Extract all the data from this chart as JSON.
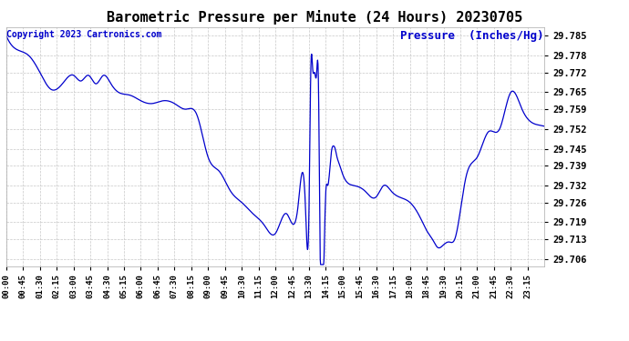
{
  "title": "Barometric Pressure per Minute (24 Hours) 20230705",
  "ylabel": "Pressure  (Inches/Hg)",
  "copyright": "Copyright 2023 Cartronics.com",
  "line_color": "#0000cc",
  "ylabel_color": "#0000cc",
  "copyright_color": "#0000cc",
  "background_color": "#ffffff",
  "grid_color": "#c8c8c8",
  "title_fontsize": 11,
  "ylabel_fontsize": 9,
  "copyright_fontsize": 7,
  "yticks": [
    29.706,
    29.713,
    29.719,
    29.726,
    29.732,
    29.739,
    29.745,
    29.752,
    29.759,
    29.765,
    29.772,
    29.778,
    29.785
  ],
  "ylim": [
    29.7035,
    29.788
  ],
  "xtick_labels": [
    "00:00",
    "00:45",
    "01:30",
    "02:15",
    "03:00",
    "03:45",
    "04:30",
    "05:15",
    "06:00",
    "06:45",
    "07:30",
    "08:15",
    "09:00",
    "09:45",
    "10:30",
    "11:15",
    "12:00",
    "12:45",
    "13:30",
    "14:15",
    "15:00",
    "15:45",
    "16:30",
    "17:15",
    "18:00",
    "18:45",
    "19:30",
    "20:15",
    "21:00",
    "21:45",
    "22:30",
    "23:15"
  ],
  "key_t": [
    0,
    30,
    60,
    90,
    120,
    150,
    180,
    200,
    220,
    240,
    260,
    280,
    300,
    330,
    360,
    390,
    420,
    450,
    480,
    510,
    540,
    570,
    600,
    630,
    660,
    690,
    720,
    750,
    780,
    800,
    810,
    815,
    820,
    825,
    830,
    835,
    840,
    855,
    860,
    870,
    875,
    880,
    885,
    890,
    900,
    930,
    960,
    990,
    1010,
    1030,
    1050,
    1080,
    1110,
    1125,
    1140,
    1155,
    1170,
    1185,
    1200,
    1230,
    1260,
    1290,
    1320,
    1350,
    1380,
    1410,
    1439
  ],
  "key_p": [
    29.785,
    29.78,
    29.778,
    29.772,
    29.766,
    29.768,
    29.771,
    29.769,
    29.771,
    29.768,
    29.771,
    29.768,
    29.765,
    29.764,
    29.762,
    29.761,
    29.762,
    29.761,
    29.759,
    29.757,
    29.742,
    29.737,
    29.73,
    29.726,
    29.722,
    29.718,
    29.715,
    29.722,
    29.724,
    29.726,
    29.724,
    29.774,
    29.773,
    29.772,
    29.771,
    29.77,
    29.706,
    29.73,
    29.732,
    29.744,
    29.746,
    29.745,
    29.742,
    29.74,
    29.736,
    29.732,
    29.73,
    29.728,
    29.732,
    29.73,
    29.728,
    29.726,
    29.72,
    29.716,
    29.713,
    29.71,
    29.711,
    29.712,
    29.713,
    29.735,
    29.742,
    29.751,
    29.752,
    29.765,
    29.759,
    29.754,
    29.753
  ]
}
